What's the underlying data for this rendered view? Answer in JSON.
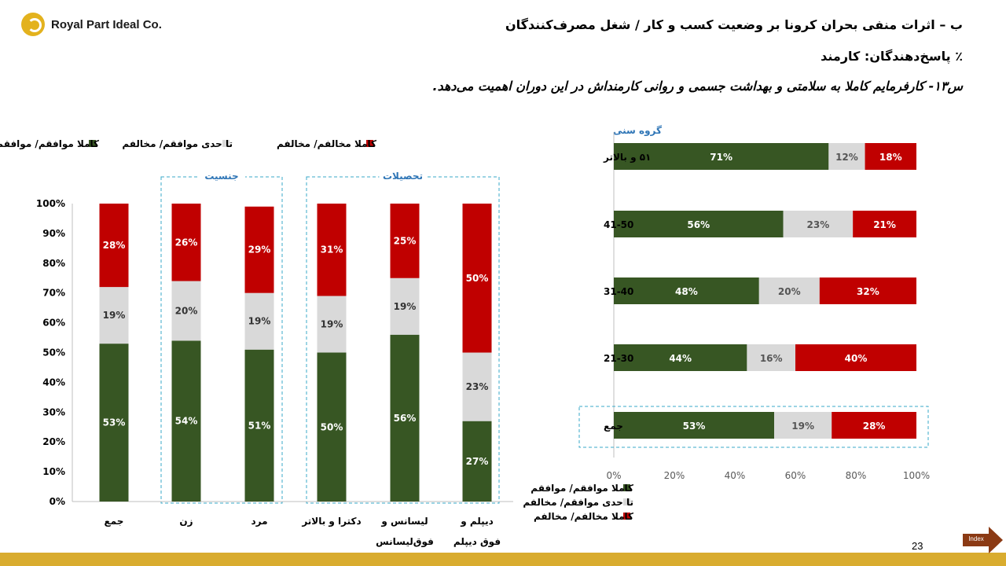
{
  "logo": {
    "text": "Royal Part Ideal Co."
  },
  "header": {
    "title": "ب – اثرات منفی بحران کرونا بر وضعیت کسب و کار / شغل مصرف‌کنندگان",
    "respondents": "٪ پاسخ‌دهندگان: کارمند",
    "question": "س۱۳- کارفرمایم کاملا به سلامتی و بهداشت جسمی و روانی کارمنداش در این دوران اهمیت می‌دهد."
  },
  "colors": {
    "agree": "#375623",
    "neutral": "#d9d9d9",
    "disagree": "#c00000",
    "frame": "#3aa8c8",
    "group_title": "#2e75b6"
  },
  "chart_data": [
    {
      "type": "bar",
      "orientation": "vertical",
      "stacked": true,
      "legend": [
        "کاملا موافقم/ موافقم",
        "تا حدی موافقم/ مخالفم",
        "کاملا مخالفم/ مخالفم"
      ],
      "legend_position": "top",
      "y_ticks": [
        "0%",
        "10%",
        "20%",
        "30%",
        "40%",
        "50%",
        "60%",
        "70%",
        "80%",
        "90%",
        "100%"
      ],
      "ylim": [
        0,
        100
      ],
      "grid": false,
      "groups": [
        {
          "title": "جنسیت",
          "categories": [
            1,
            2
          ]
        },
        {
          "title": "تحصیلات",
          "categories": [
            3,
            4,
            5
          ]
        }
      ],
      "categories": [
        {
          "label": "جمع",
          "agree": 53,
          "neutral": 19,
          "disagree": 28
        },
        {
          "label": "زن",
          "agree": 54,
          "neutral": 20,
          "disagree": 26
        },
        {
          "label": "مرد",
          "agree": 51,
          "neutral": 19,
          "disagree": 29
        },
        {
          "label": "دکترا و بالاتر",
          "agree": 50,
          "neutral": 19,
          "disagree": 31
        },
        {
          "label": "لیسانس و فوق‌لیسانس",
          "agree": 56,
          "neutral": 19,
          "disagree": 25
        },
        {
          "label": "دیپلم و فوق دیپلم",
          "agree": 27,
          "neutral": 23,
          "disagree": 50
        }
      ]
    },
    {
      "type": "bar",
      "orientation": "horizontal",
      "stacked": true,
      "axis_title": "گروه سنی",
      "x_ticks": [
        "0%",
        "20%",
        "40%",
        "60%",
        "80%",
        "100%"
      ],
      "xlim": [
        0,
        100
      ],
      "grid": false,
      "legend": [
        "کاملا موافقم/ موافقم",
        "تا حدی موافقم/ مخالفم",
        "کاملا مخالفم/ مخالفم"
      ],
      "legend_position": "bottom",
      "highlighted": "جمع",
      "categories": [
        {
          "label": "۵۱ و بالاتر",
          "agree": 71,
          "neutral": 12,
          "disagree": 18
        },
        {
          "label": "41-50",
          "agree": 56,
          "neutral": 23,
          "disagree": 21
        },
        {
          "label": "31-40",
          "agree": 48,
          "neutral": 20,
          "disagree": 32
        },
        {
          "label": "21-30",
          "agree": 44,
          "neutral": 16,
          "disagree": 40
        },
        {
          "label": "جمع",
          "agree": 53,
          "neutral": 19,
          "disagree": 28
        }
      ]
    }
  ],
  "footer": {
    "page_number": "23",
    "index_label": "Index"
  }
}
